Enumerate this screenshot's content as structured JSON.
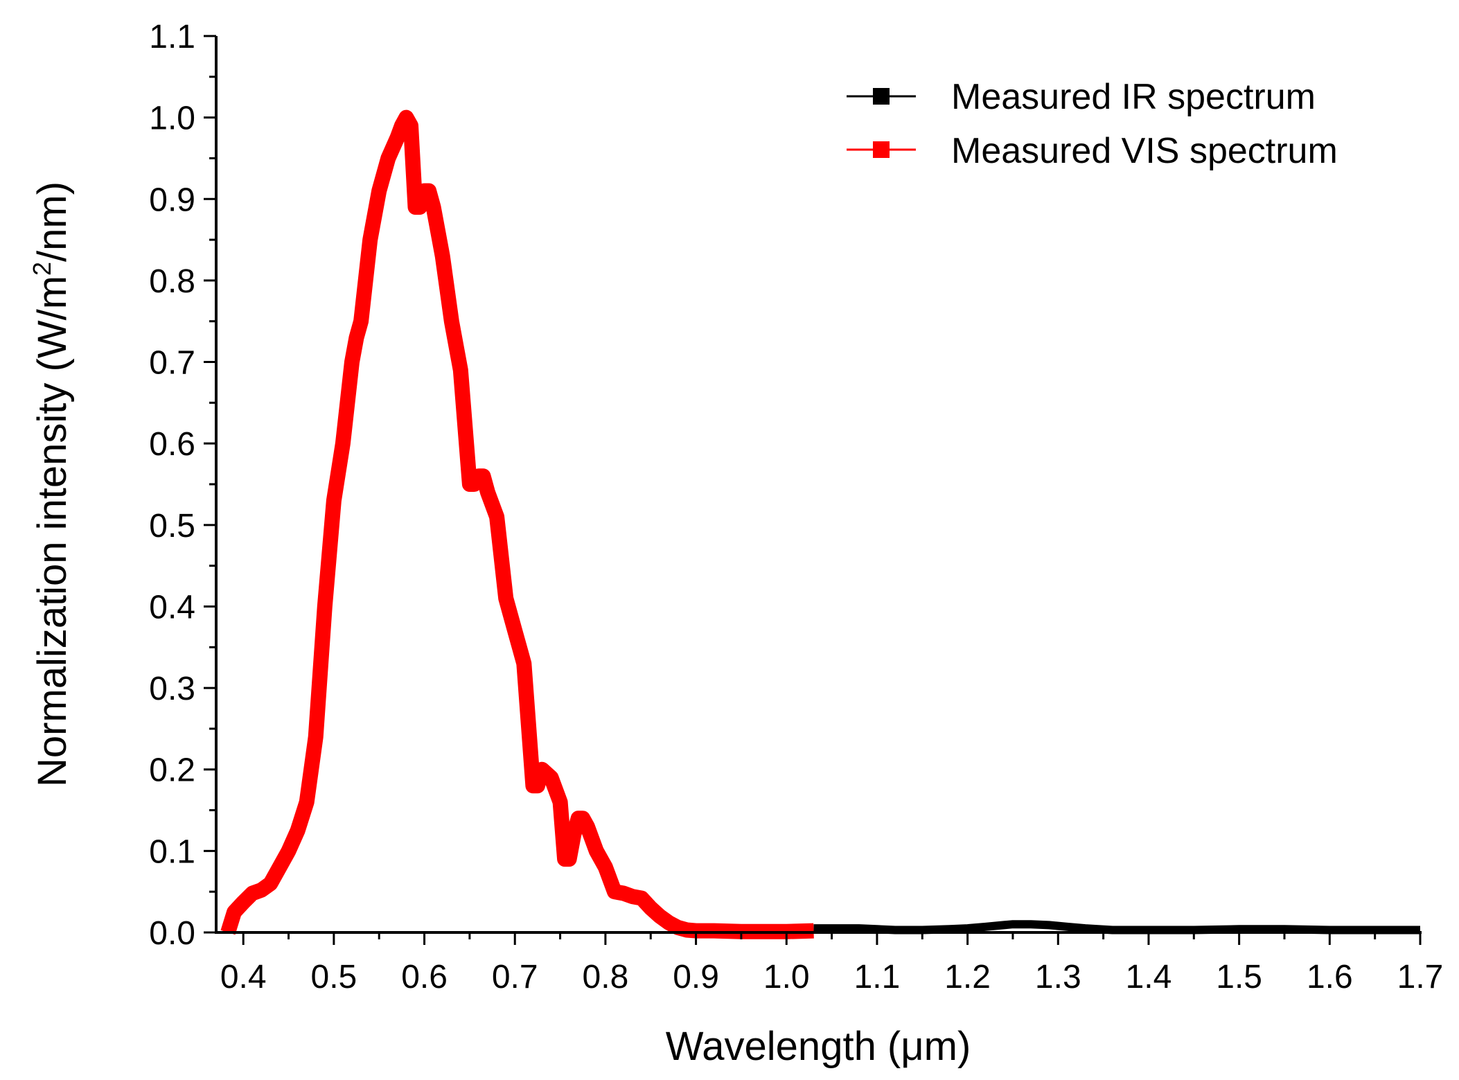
{
  "chart_data": {
    "type": "line",
    "title": "",
    "xlabel": "Wavelength (μm)",
    "ylabel_main": "Normalization intensity (W/m",
    "ylabel_sup": "2",
    "ylabel_tail": "/nm)",
    "xlim": [
      0.37,
      1.7
    ],
    "ylim": [
      0.0,
      1.1
    ],
    "xticks": [
      0.4,
      0.5,
      0.6,
      0.7,
      0.8,
      0.9,
      1.0,
      1.1,
      1.2,
      1.3,
      1.4,
      1.5,
      1.6,
      1.7
    ],
    "xtick_labels": [
      "0.4",
      "0.5",
      "0.6",
      "0.7",
      "0.8",
      "0.9",
      "1.0",
      "1.1",
      "1.2",
      "1.3",
      "1.4",
      "1.5",
      "1.6",
      "1.7"
    ],
    "yticks": [
      0.0,
      0.1,
      0.2,
      0.3,
      0.4,
      0.5,
      0.6,
      0.7,
      0.8,
      0.9,
      1.0,
      1.1
    ],
    "ytick_labels": [
      "0.0",
      "0.1",
      "0.2",
      "0.3",
      "0.4",
      "0.5",
      "0.6",
      "0.7",
      "0.8",
      "0.9",
      "1.0",
      "1.1"
    ],
    "grid": false,
    "legend_position": "top-right",
    "series": [
      {
        "name": "Measured IR spectrum",
        "color": "#000000",
        "x": [
          1.03,
          1.05,
          1.08,
          1.1,
          1.12,
          1.15,
          1.18,
          1.2,
          1.22,
          1.24,
          1.25,
          1.27,
          1.29,
          1.31,
          1.33,
          1.36,
          1.4,
          1.45,
          1.5,
          1.55,
          1.6,
          1.65,
          1.7
        ],
        "y": [
          0.005,
          0.005,
          0.005,
          0.004,
          0.003,
          0.003,
          0.004,
          0.005,
          0.007,
          0.009,
          0.01,
          0.01,
          0.009,
          0.007,
          0.005,
          0.003,
          0.003,
          0.003,
          0.004,
          0.004,
          0.003,
          0.003,
          0.003
        ]
      },
      {
        "name": "Measured VIS spectrum",
        "color": "#ff0000",
        "x": [
          0.383,
          0.39,
          0.4,
          0.41,
          0.42,
          0.43,
          0.44,
          0.45,
          0.46,
          0.47,
          0.48,
          0.49,
          0.5,
          0.51,
          0.52,
          0.525,
          0.53,
          0.54,
          0.55,
          0.56,
          0.57,
          0.575,
          0.58,
          0.585,
          0.59,
          0.595,
          0.6,
          0.605,
          0.61,
          0.62,
          0.63,
          0.64,
          0.65,
          0.655,
          0.66,
          0.665,
          0.67,
          0.68,
          0.69,
          0.695,
          0.7,
          0.705,
          0.71,
          0.72,
          0.725,
          0.73,
          0.74,
          0.75,
          0.755,
          0.76,
          0.765,
          0.77,
          0.775,
          0.78,
          0.79,
          0.8,
          0.81,
          0.82,
          0.83,
          0.84,
          0.85,
          0.86,
          0.87,
          0.88,
          0.89,
          0.9,
          0.92,
          0.95,
          0.98,
          1.0,
          1.03
        ],
        "y": [
          0.0,
          0.025,
          0.037,
          0.048,
          0.052,
          0.06,
          0.08,
          0.1,
          0.125,
          0.16,
          0.24,
          0.4,
          0.53,
          0.6,
          0.7,
          0.73,
          0.75,
          0.85,
          0.91,
          0.95,
          0.975,
          0.99,
          1.0,
          0.99,
          0.89,
          0.89,
          0.91,
          0.91,
          0.89,
          0.83,
          0.75,
          0.69,
          0.55,
          0.55,
          0.56,
          0.56,
          0.54,
          0.51,
          0.41,
          0.39,
          0.37,
          0.35,
          0.33,
          0.18,
          0.18,
          0.2,
          0.19,
          0.16,
          0.09,
          0.09,
          0.12,
          0.14,
          0.14,
          0.13,
          0.1,
          0.08,
          0.05,
          0.048,
          0.044,
          0.042,
          0.03,
          0.02,
          0.012,
          0.006,
          0.003,
          0.002,
          0.002,
          0.001,
          0.001,
          0.001,
          0.002
        ]
      }
    ]
  }
}
